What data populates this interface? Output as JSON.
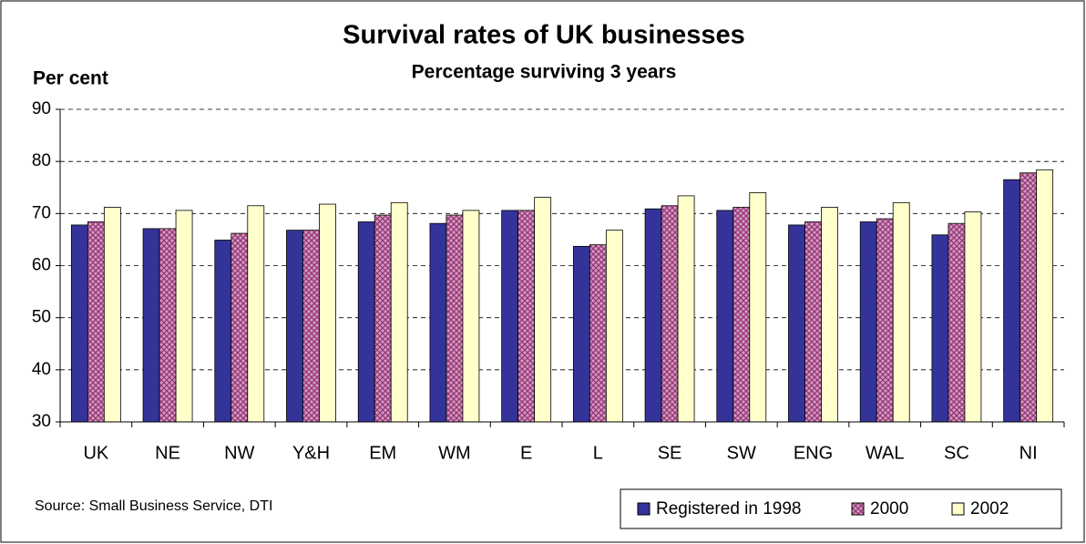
{
  "chart_data": {
    "type": "bar",
    "title": "Survival rates of UK businesses",
    "subtitle": "Percentage surviving 3 years",
    "y_label": "Per cent",
    "source": "Source: Small Business Service, DTI",
    "categories": [
      "UK",
      "NE",
      "NW",
      "Y&H",
      "EM",
      "WM",
      "E",
      "L",
      "SE",
      "SW",
      "ENG",
      "WAL",
      "SC",
      "NI"
    ],
    "series": [
      {
        "name": "Registered in 1998",
        "color": "#333399",
        "values": [
          67.8,
          67.1,
          64.9,
          66.8,
          68.4,
          68.1,
          70.6,
          63.7,
          70.9,
          70.6,
          67.8,
          68.4,
          65.9,
          76.5
        ]
      },
      {
        "name": "2000",
        "color": "#cc99cc",
        "values": [
          68.4,
          67.1,
          66.2,
          66.8,
          69.7,
          69.7,
          70.6,
          64.0,
          71.5,
          71.2,
          68.4,
          69.0,
          68.1,
          77.8
        ]
      },
      {
        "name": "2002",
        "color": "#ffffcc",
        "values": [
          71.2,
          70.6,
          71.5,
          71.8,
          72.1,
          70.6,
          73.1,
          66.8,
          73.4,
          74.0,
          71.2,
          72.1,
          70.3,
          78.4
        ]
      }
    ],
    "ylim": [
      30,
      90
    ],
    "yticks": [
      30,
      40,
      50,
      60,
      70,
      80,
      90
    ],
    "grid": true
  }
}
